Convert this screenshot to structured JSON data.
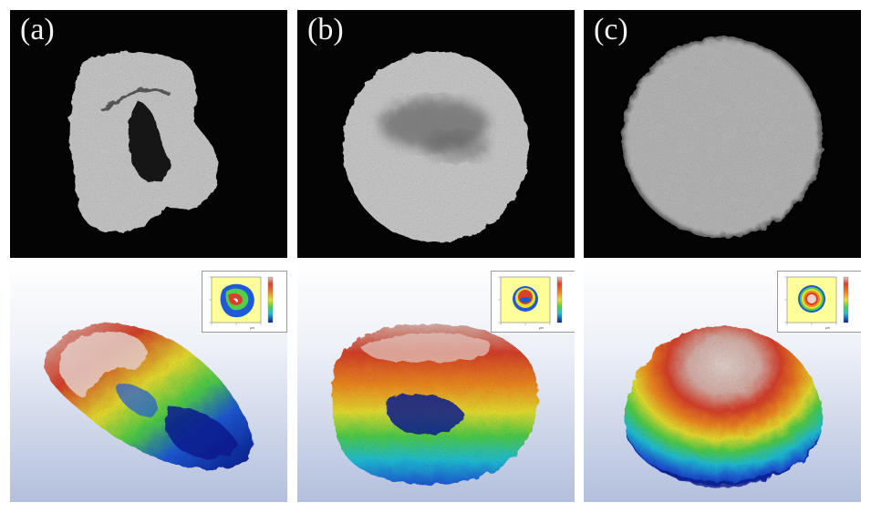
{
  "panels": [
    {
      "label": "(a)"
    },
    {
      "label": "(b)"
    },
    {
      "label": "(c)"
    }
  ],
  "inset": {
    "axis_unit": "μm"
  },
  "colors": {
    "background": "#ffffff",
    "micrograph_bg": "#040404",
    "cell_gray": "#c9c9c9",
    "topo_bg_top": "#ffffff",
    "topo_bg_bottom": "#b3bfdc",
    "inset_field": "#ffff99",
    "colormap": [
      "#0a1a8c",
      "#1e5ad8",
      "#21c0d8",
      "#4fcf4a",
      "#e8e030",
      "#f08a20",
      "#d8402a",
      "#e0c8c0"
    ]
  }
}
